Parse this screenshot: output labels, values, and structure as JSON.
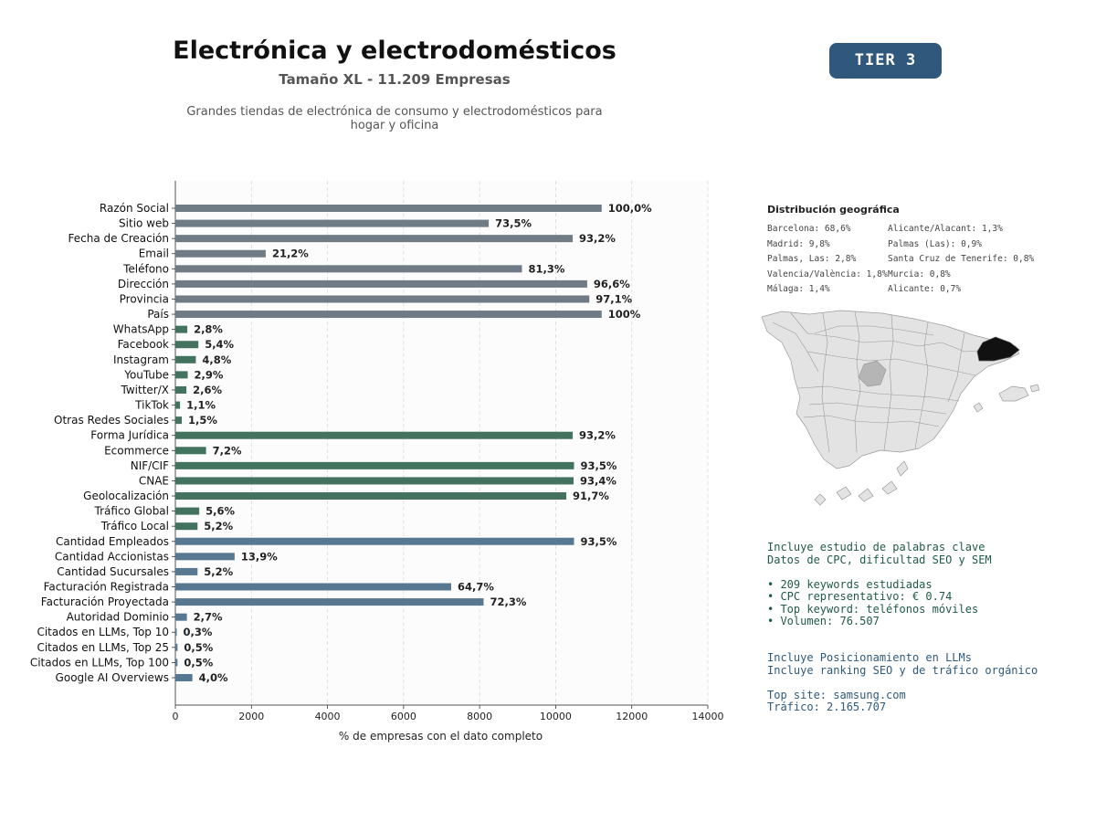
{
  "header": {
    "title": "Electrónica y electrodomésticos",
    "subtitle": "Tamaño XL - 11.209 Empresas",
    "description_line1": "Grandes tiendas de electrónica de consumo y electrodomésticos para",
    "description_line2": "hogar y oficina",
    "tier": "TIER 3"
  },
  "chart_data": {
    "type": "bar",
    "orientation": "horizontal",
    "xlabel": "% de empresas con el dato completo",
    "xlim": [
      0,
      14000
    ],
    "xticks": [
      0,
      2000,
      4000,
      6000,
      8000,
      10000,
      12000,
      14000
    ],
    "grid": "vertical dashed",
    "categories": [
      "Razón Social",
      "Sitio web",
      "Fecha de Creación",
      "Email",
      "Teléfono",
      "Dirección",
      "Provincia",
      "País",
      "WhatsApp",
      "Facebook",
      "Instagram",
      "YouTube",
      "Twitter/X",
      "TikTok",
      "Otras Redes Sociales",
      "Forma Jurídica",
      "Ecommerce",
      "NIF/CIF",
      "CNAE",
      "Geolocalización",
      "Tráfico Global",
      "Tráfico Local",
      "Cantidad Empleados",
      "Cantidad Accionistas",
      "Cantidad Sucursales",
      "Facturación Registrada",
      "Facturación Proyectada",
      "Autoridad Dominio",
      "Citados en LLMs, Top 10",
      "Citados en LLMs, Top 25",
      "Citados en LLMs, Top 100",
      "Google AI Overviews"
    ],
    "values": [
      11209,
      8239,
      10447,
      2376,
      9113,
      10828,
      10884,
      11209,
      314,
      605,
      538,
      325,
      291,
      123,
      168,
      10447,
      807,
      10482,
      10469,
      10279,
      628,
      583,
      10482,
      1558,
      583,
      7252,
      8104,
      303,
      34,
      56,
      56,
      448
    ],
    "labels": [
      "100,0%",
      "73,5%",
      "93,2%",
      "21,2%",
      "81,3%",
      "96,6%",
      "97,1%",
      "100%",
      "2,8%",
      "5,4%",
      "4,8%",
      "2,9%",
      "2,6%",
      "1,1%",
      "1,5%",
      "93,2%",
      "7,2%",
      "93,5%",
      "93,4%",
      "91,7%",
      "5,6%",
      "5,2%",
      "93,5%",
      "13,9%",
      "5,2%",
      "64,7%",
      "72,3%",
      "2,7%",
      "0,3%",
      "0,5%",
      "0,5%",
      "4,0%"
    ],
    "groups": [
      {
        "from": 0,
        "to": 8,
        "color": "#6f7b85"
      },
      {
        "from": 8,
        "to": 22,
        "color": "#43725f"
      },
      {
        "from": 22,
        "to": 32,
        "color": "#587891"
      }
    ]
  },
  "geo": {
    "title": "Distribución geográfica",
    "left": [
      "Barcelona: 68,6%",
      "Madrid: 9,8%",
      "Palmas, Las: 2,8%",
      "Valencia/València: 1,8%",
      "Málaga: 1,4%"
    ],
    "right": [
      "Alicante/Alacant: 1,3%",
      "Palmas (Las): 0,9%",
      "Santa Cruz de Tenerife: 0,8%",
      "Murcia: 0,8%",
      "Alicante: 0,7%"
    ],
    "map_colors": {
      "base": "#e3e3e3",
      "border": "#9a9a9a",
      "highlight_high": "#111111",
      "highlight_mid": "#b5b5b5"
    }
  },
  "keywords": {
    "line1": "Incluye estudio de palabras clave",
    "line2": "Datos de CPC, dificultad SEO y SEM",
    "bullets": [
      "• 209 keywords estudiadas",
      "• CPC representativo: € 0.74",
      "• Top keyword: teléfonos móviles",
      "• Volumen: 76.507"
    ],
    "color": "#1f5b45"
  },
  "llm": {
    "line1": "Incluye Posicionamiento en LLMs",
    "line2": "Incluye ranking SEO y de tráfico orgánico",
    "top_site": "Top site: samsung.com",
    "traffic": "Tráfico: 2.165.707",
    "color": "#2e5a7c"
  }
}
